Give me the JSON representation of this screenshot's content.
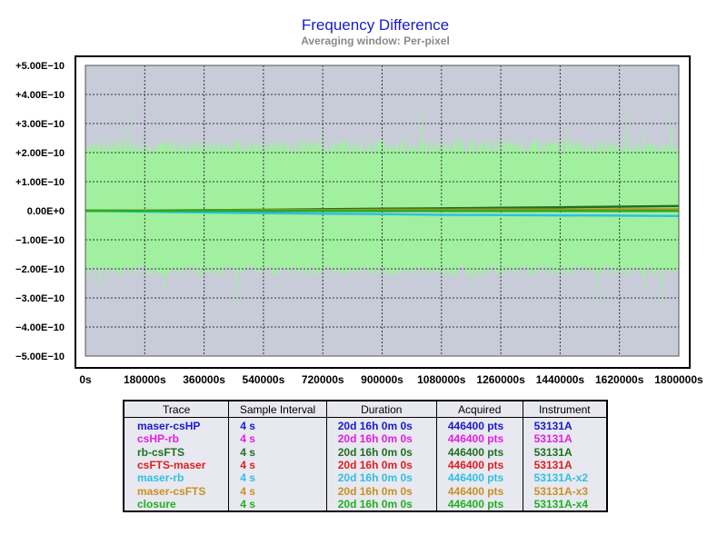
{
  "chart_data": {
    "type": "line",
    "title": "Frequency Difference",
    "subtitle": "Averaging window: Per-pixel",
    "xlim": [
      0,
      1800000
    ],
    "ylim": [
      -5e-10,
      5e-10
    ],
    "x_ticks": [
      "0s",
      "180000s",
      "360000s",
      "540000s",
      "720000s",
      "900000s",
      "1080000s",
      "1260000s",
      "1440000s",
      "1620000s",
      "1800000s"
    ],
    "y_ticks": [
      "+5.00E−10",
      "+4.00E−10",
      "+3.00E−10",
      "+2.00E−10",
      "+1.00E−10",
      "0.00E+0",
      "−1.00E−10",
      "−2.00E−10",
      "−3.00E−10",
      "−4.00E−10",
      "−5.00E−10"
    ],
    "zero_tick_color": "#1a1acc",
    "grid": true,
    "plot_background": "#c8ccd8",
    "noise_band": {
      "color": "#a0f0a0",
      "upper": 2.5e-10,
      "lower": -2.3e-10
    },
    "series": [
      {
        "name": "maser-csHP",
        "color": "#1a1acc",
        "x": [
          0,
          1800000
        ],
        "y": [
          0,
          0
        ]
      },
      {
        "name": "csHP-rb",
        "color": "#e020e0",
        "x": [
          0,
          1800000
        ],
        "y": [
          0,
          0
        ]
      },
      {
        "name": "rb-csFTS",
        "color": "#207020",
        "x": [
          0,
          180000,
          360000,
          540000,
          720000,
          900000,
          1080000,
          1260000,
          1440000,
          1620000,
          1800000
        ],
        "y": [
          0.0,
          1e-12,
          2e-12,
          3e-12,
          5e-12,
          7e-12,
          8e-12,
          1e-11,
          1.2e-11,
          1.4e-11,
          1.6e-11
        ]
      },
      {
        "name": "csFTS-maser",
        "color": "#dd2020",
        "x": [
          0,
          180000,
          360000,
          540000,
          720000,
          900000,
          1080000,
          1260000,
          1440000,
          1620000,
          1800000
        ],
        "y": [
          0.0,
          0.0,
          1e-12,
          0.0,
          1e-12,
          0.0,
          1e-12,
          0.0,
          1e-12,
          0.0,
          0.0
        ]
      },
      {
        "name": "maser-rb",
        "color": "#30c0e0",
        "x": [
          0,
          180000,
          360000,
          540000,
          720000,
          900000,
          1080000,
          1260000,
          1440000,
          1620000,
          1800000
        ],
        "y": [
          0.0,
          -3e-12,
          -6e-12,
          -8e-12,
          -1e-11,
          -1.2e-11,
          -1.4e-11,
          -1.5e-11,
          -1.6e-11,
          -1.7e-11,
          -1.8e-11
        ]
      },
      {
        "name": "maser-csFTS",
        "color": "#c89020",
        "x": [
          0,
          180000,
          360000,
          540000,
          720000,
          900000,
          1080000,
          1260000,
          1440000,
          1620000,
          1800000
        ],
        "y": [
          0.0,
          1e-12,
          1e-12,
          2e-12,
          2e-12,
          3e-12,
          3e-12,
          4e-12,
          4e-12,
          5e-12,
          5e-12
        ]
      },
      {
        "name": "closure",
        "color": "#20b020",
        "x": [
          0,
          1800000
        ],
        "y": [
          0,
          0
        ]
      }
    ]
  },
  "legend_table": {
    "headers": [
      "Trace",
      "Sample Interval",
      "Duration",
      "Acquired",
      "Instrument"
    ],
    "rows": [
      {
        "trace": "maser-csHP",
        "interval": "4 s",
        "duration": "20d 16h 0m 0s",
        "acquired": "446400 pts",
        "instrument": "53131A",
        "color": "#1a1acc"
      },
      {
        "trace": "csHP-rb",
        "interval": "4 s",
        "duration": "20d 16h 0m 0s",
        "acquired": "446400 pts",
        "instrument": "53131A",
        "color": "#e020e0"
      },
      {
        "trace": "rb-csFTS",
        "interval": "4 s",
        "duration": "20d 16h 0m 0s",
        "acquired": "446400 pts",
        "instrument": "53131A",
        "color": "#207020"
      },
      {
        "trace": "csFTS-maser",
        "interval": "4 s",
        "duration": "20d 16h 0m 0s",
        "acquired": "446400 pts",
        "instrument": "53131A",
        "color": "#dd2020"
      },
      {
        "trace": "maser-rb",
        "interval": "4 s",
        "duration": "20d 16h 0m 0s",
        "acquired": "446400 pts",
        "instrument": "53131A-x2",
        "color": "#30c0e0"
      },
      {
        "trace": "maser-csFTS",
        "interval": "4 s",
        "duration": "20d 16h 0m 0s",
        "acquired": "446400 pts",
        "instrument": "53131A-x3",
        "color": "#c89020"
      },
      {
        "trace": "closure",
        "interval": "4 s",
        "duration": "20d 16h 0m 0s",
        "acquired": "446400 pts",
        "instrument": "53131A-x4",
        "color": "#20b020"
      }
    ]
  }
}
